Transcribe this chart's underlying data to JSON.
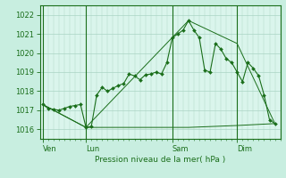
{
  "background_color": "#c8eee0",
  "plot_bg_color": "#daf5ec",
  "grid_color": "#aad4c4",
  "line_color": "#1a6e1a",
  "marker_color": "#1a6e1a",
  "title": "Pression niveau de la mer( hPa )",
  "ylim": [
    1015.5,
    1022.5
  ],
  "yticks": [
    1016,
    1017,
    1018,
    1019,
    1020,
    1021,
    1022
  ],
  "day_labels": [
    "Ven",
    "Lun",
    "Sam",
    "Dim"
  ],
  "day_positions": [
    0,
    8,
    24,
    36
  ],
  "xlim": [
    -0.5,
    44
  ],
  "series1_x": [
    0,
    1,
    2,
    3,
    4,
    5,
    6,
    7,
    8,
    9,
    10,
    11,
    12,
    13,
    14,
    15,
    16,
    17,
    18,
    19,
    20,
    21,
    22,
    23,
    24,
    25,
    26,
    27,
    28,
    29,
    30,
    31,
    32,
    33,
    34,
    35,
    36,
    37,
    38,
    39,
    40,
    41,
    42,
    43
  ],
  "series1_y": [
    1017.3,
    1017.1,
    1017.05,
    1017.0,
    1017.1,
    1017.2,
    1017.25,
    1017.3,
    1016.1,
    1016.15,
    1017.8,
    1018.2,
    1018.0,
    1018.15,
    1018.3,
    1018.4,
    1018.9,
    1018.8,
    1018.6,
    1018.85,
    1018.9,
    1019.0,
    1018.9,
    1019.5,
    1020.8,
    1021.0,
    1021.2,
    1021.7,
    1021.2,
    1020.8,
    1019.1,
    1019.0,
    1020.5,
    1020.2,
    1019.7,
    1019.5,
    1019.0,
    1018.5,
    1019.5,
    1019.2,
    1018.8,
    1017.8,
    1016.5,
    1016.3
  ],
  "series2_x": [
    0,
    8,
    27,
    36,
    43
  ],
  "series2_y": [
    1017.3,
    1016.1,
    1016.1,
    1016.2,
    1016.3
  ],
  "series3_x": [
    0,
    8,
    27,
    36,
    43
  ],
  "series3_y": [
    1017.3,
    1016.1,
    1021.7,
    1020.5,
    1016.3
  ],
  "vline_positions": [
    0,
    8,
    24,
    36
  ]
}
